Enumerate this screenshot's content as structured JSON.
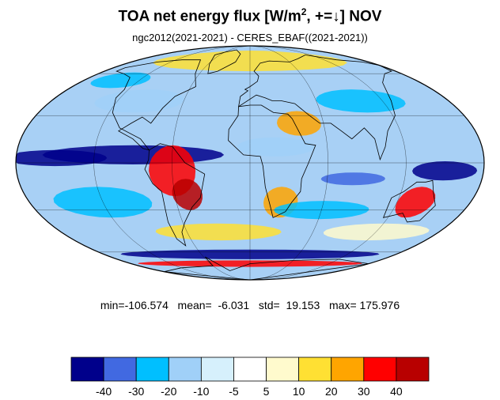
{
  "title_main": "TOA net energy flux  [W/m",
  "title_sup": "2",
  "title_tail": ", +=↓] NOV",
  "subtitle": "ngc2012(2021-2021) - CERES_EBAF((2021-2021))",
  "stats": "min=-106.574   mean=  -6.031   std=  19.153   max= 175.976",
  "colorbar": {
    "colors": [
      "#00008b",
      "#4169e1",
      "#00bfff",
      "#a0d0f8",
      "#d6f0fc",
      "#ffffff",
      "#fffacd",
      "#ffe033",
      "#ffa500",
      "#ff0000",
      "#b80000"
    ],
    "ticks": [
      "-40",
      "-30",
      "-20",
      "-10",
      "-5",
      "5",
      "10",
      "20",
      "30",
      "40"
    ]
  },
  "map": {
    "projection": "Mollweide",
    "background_color": "#a8d0f5",
    "coastline_color": "#000000",
    "grid_color": "#000000"
  }
}
